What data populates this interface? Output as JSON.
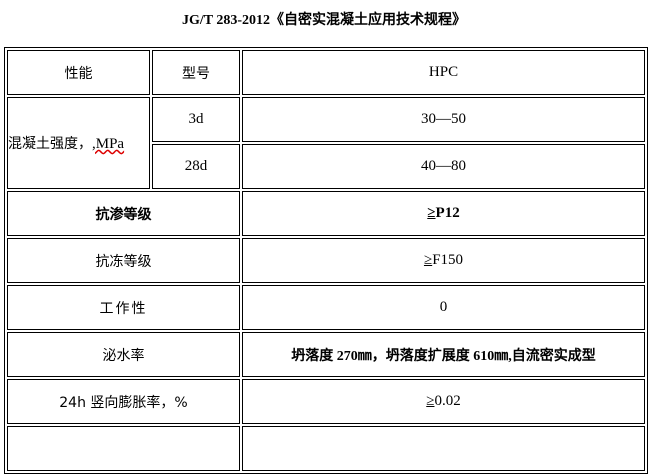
{
  "title": "JG/T 283-2012《自密实混凝土应用技术规程》",
  "header": {
    "col1": "性能",
    "col2": "型号",
    "col3": "HPC"
  },
  "strength": {
    "label": "混凝土强度，",
    "unit": ",MPa",
    "rows": [
      {
        "age": "3d",
        "value": "30—50"
      },
      {
        "age": "28d",
        "value": "40—80"
      }
    ]
  },
  "rows": [
    {
      "label": "抗渗等级",
      "ge": "≥",
      "value": "P12"
    },
    {
      "label": "抗冻等级",
      "ge": "≥",
      "value": "F150"
    },
    {
      "label": "工作性",
      "value": "0"
    },
    {
      "label": "泌水率",
      "value": "坍落度 270㎜，坍落度扩展度 610㎜,自流密实成型"
    },
    {
      "label": "24h 竖向膨胀率，%",
      "ge": "≥",
      "value": "0.02"
    }
  ]
}
